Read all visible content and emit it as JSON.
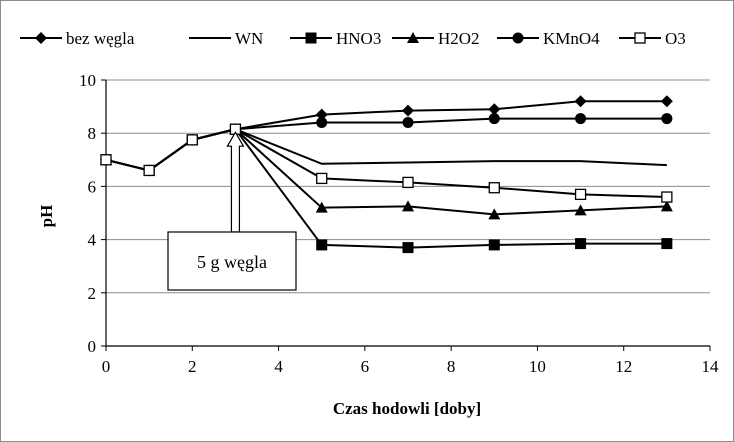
{
  "chart_data": {
    "type": "line",
    "title": "",
    "xlabel": "Czas hodowli [doby]",
    "ylabel": "pH",
    "xlim": [
      0,
      14
    ],
    "ylim": [
      0,
      10
    ],
    "xticks": [
      "0",
      "2",
      "4",
      "6",
      "8",
      "10",
      "12",
      "14"
    ],
    "yticks": [
      "0",
      "2",
      "4",
      "6",
      "8",
      "10"
    ],
    "grid": "horizontal",
    "legend_position": "top",
    "series": [
      {
        "name": "bez węgla",
        "marker": "diamond",
        "color": "#000000",
        "x": [
          0,
          1,
          2,
          3,
          5,
          7,
          9,
          11,
          13
        ],
        "y": [
          7.0,
          6.6,
          7.75,
          8.15,
          8.7,
          8.85,
          8.9,
          9.2,
          9.2
        ]
      },
      {
        "name": "WN",
        "marker": "none",
        "color": "#000000",
        "x": [
          0,
          1,
          2,
          3,
          5,
          7,
          9,
          11,
          13
        ],
        "y": [
          7.0,
          6.6,
          7.75,
          8.15,
          6.85,
          6.9,
          6.95,
          6.95,
          6.8
        ]
      },
      {
        "name": "HNO3",
        "marker": "square",
        "color": "#000000",
        "x": [
          0,
          1,
          2,
          3,
          5,
          7,
          9,
          11,
          13
        ],
        "y": [
          7.0,
          6.6,
          7.75,
          8.15,
          3.8,
          3.7,
          3.8,
          3.85,
          3.85
        ]
      },
      {
        "name": "H2O2",
        "marker": "triangle",
        "color": "#000000",
        "x": [
          0,
          1,
          2,
          3,
          5,
          7,
          9,
          11,
          13
        ],
        "y": [
          7.0,
          6.6,
          7.75,
          8.15,
          5.2,
          5.25,
          4.95,
          5.1,
          5.25
        ]
      },
      {
        "name": "KMnO4",
        "marker": "circle",
        "color": "#000000",
        "x": [
          0,
          1,
          2,
          3,
          5,
          7,
          9,
          11,
          13
        ],
        "y": [
          7.0,
          6.6,
          7.75,
          8.15,
          8.4,
          8.4,
          8.55,
          8.55,
          8.55
        ]
      },
      {
        "name": "O3",
        "marker": "open-square",
        "color": "#000000",
        "x": [
          0,
          1,
          2,
          3,
          5,
          7,
          9,
          11,
          13
        ],
        "y": [
          7.0,
          6.6,
          7.75,
          8.15,
          6.3,
          6.15,
          5.95,
          5.7,
          5.6
        ]
      }
    ],
    "annotation": {
      "text": "5 g węgla",
      "arrow_x": 3,
      "arrow_y": 8.15
    }
  }
}
